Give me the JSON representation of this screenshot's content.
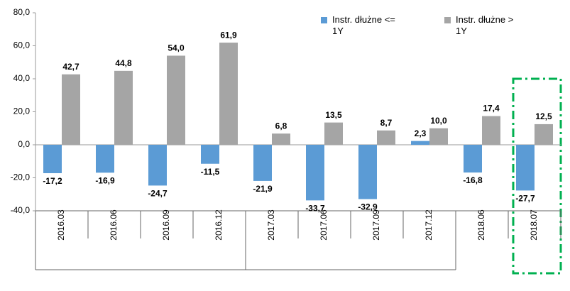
{
  "chart_data": {
    "type": "bar",
    "categories": [
      "2016.03",
      "2016.06",
      "2016.09",
      "2016.12",
      "2017.03",
      "2017.06",
      "2017.09",
      "2017.12",
      "2018.06",
      "2018.07"
    ],
    "series": [
      {
        "name": "Instr. dłużne <= 1Y",
        "color": "#5b9bd5",
        "values": [
          -17.2,
          -16.9,
          -24.7,
          -11.5,
          -21.9,
          -33.7,
          -32.9,
          2.3,
          -16.8,
          -27.7
        ],
        "value_labels": [
          "-17,2",
          "-16,9",
          "-24,7",
          "-11,5",
          "-21,9",
          "-33,7",
          "-32,9",
          "2,3",
          "-16,8",
          "-27,7"
        ]
      },
      {
        "name": "Instr. dłużne > 1Y",
        "color": "#a5a5a5",
        "values": [
          42.7,
          44.8,
          54.0,
          61.9,
          6.8,
          13.5,
          8.7,
          10.0,
          17.4,
          12.5
        ],
        "value_labels": [
          "42,7",
          "44,8",
          "54,0",
          "61,9",
          "6,8",
          "13,5",
          "8,7",
          "10,0",
          "17,4",
          "12,5"
        ]
      }
    ],
    "ylim": [
      -40,
      80
    ],
    "yticks": [
      {
        "value": -40,
        "label": "-40,0"
      },
      {
        "value": -20,
        "label": "-20,0"
      },
      {
        "value": 0,
        "label": "0,0"
      },
      {
        "value": 20,
        "label": "20,0"
      },
      {
        "value": 40,
        "label": "40,0"
      },
      {
        "value": 60,
        "label": "60,0"
      },
      {
        "value": 80,
        "label": "80,0"
      }
    ],
    "grid": false,
    "legend": "top-right"
  }
}
